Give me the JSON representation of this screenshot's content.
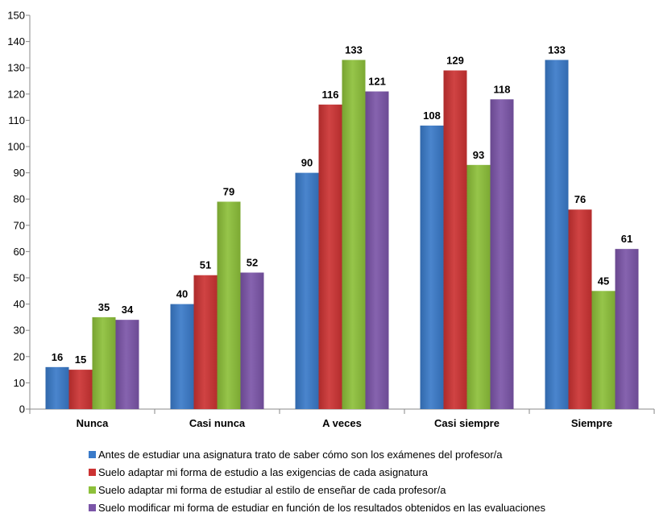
{
  "chart_data": {
    "type": "bar",
    "title_partial": "",
    "categories": [
      "Nunca",
      "Casi nunca",
      "A veces",
      "Casi siempre",
      "Siempre"
    ],
    "series": [
      {
        "name": "Antes de estudiar una asignatura trato de saber cómo son los exámenes del profesor/a",
        "color": "#3a7ac9",
        "values": [
          16,
          40,
          90,
          108,
          133
        ]
      },
      {
        "name": "Suelo adaptar mi forma de estudio a las exigencias de cada asignatura",
        "color": "#cc3333",
        "values": [
          15,
          51,
          116,
          129,
          76
        ]
      },
      {
        "name": "Suelo adaptar mi forma de estudiar al estilo de enseñar de cada profesor/a",
        "color": "#8dc03a",
        "values": [
          35,
          79,
          133,
          93,
          45
        ]
      },
      {
        "name": "Suelo modificar mi forma de estudiar en función de los resultados obtenidos en las evaluaciones",
        "color": "#7b55a8",
        "values": [
          34,
          52,
          121,
          118,
          61
        ]
      }
    ],
    "ylim": [
      0,
      150
    ],
    "yticks": [
      0,
      10,
      20,
      30,
      40,
      50,
      60,
      70,
      80,
      90,
      100,
      110,
      120,
      130,
      140,
      150
    ],
    "grid": false,
    "legend_position": "bottom"
  }
}
